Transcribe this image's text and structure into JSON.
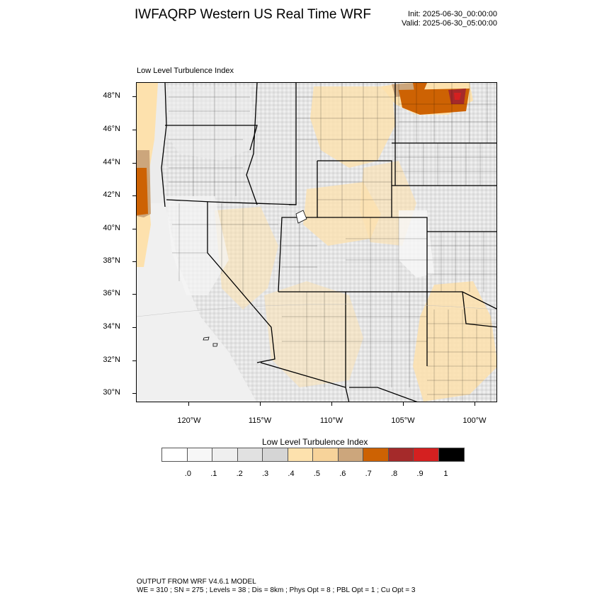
{
  "header": {
    "title": "IWFAQRP Western US Real Time WRF",
    "init": "Init: 2025-06-30_00:00:00",
    "valid": "Valid: 2025-06-30_05:00:00"
  },
  "map": {
    "subtitle": "Low Level Turbulence Index",
    "lat_labels": [
      "48°N",
      "46°N",
      "44°N",
      "42°N",
      "40°N",
      "38°N",
      "36°N",
      "34°N",
      "32°N",
      "30°N"
    ],
    "lon_labels": [
      "120°W",
      "115°W",
      "110°W",
      "105°W",
      "100°W"
    ]
  },
  "colorbar": {
    "title": "Low Level Turbulence Index",
    "labels": [
      ".0",
      ".1",
      ".2",
      ".3",
      ".4",
      ".5",
      ".6",
      ".7",
      ".8",
      ".9",
      "1"
    ],
    "colors": [
      "#ffffff",
      "#f7f7f7",
      "#efefef",
      "#e1e1e1",
      "#d5d5d5",
      "#fde1ad",
      "#f7d39a",
      "#cca67c",
      "#cd6203",
      "#a52a2a",
      "#d42020",
      "#000000"
    ]
  },
  "footer": {
    "line1": "OUTPUT FROM WRF V4.6.1 MODEL",
    "line2": "WE = 310 ; SN = 275 ; Levels = 38 ; Dis = 8km ; Phys Opt = 8 ; PBL Opt = 1 ; Cu Opt = 3"
  }
}
